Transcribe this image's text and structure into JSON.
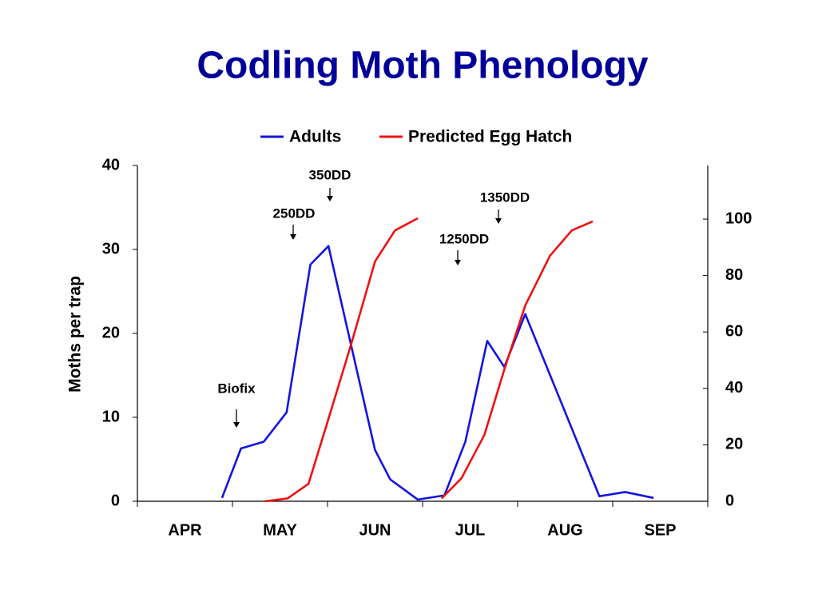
{
  "chart_data": {
    "type": "line",
    "title": "Codling Moth Phenology",
    "categories": [
      "APR",
      "MAY",
      "JUN",
      "JUL",
      "AUG",
      "SEP"
    ],
    "xlim": [
      0,
      6
    ],
    "ylabel": "Moths per trap",
    "ylim": [
      0,
      40
    ],
    "yticks": [
      0,
      10,
      20,
      30,
      40
    ],
    "y2lim": [
      0,
      119
    ],
    "y2ticks": [
      0,
      20,
      40,
      60,
      80,
      100
    ],
    "legend": "top",
    "series": [
      {
        "name": "Adults",
        "color": "#1414e0",
        "x": [
          0.89,
          1.09,
          1.33,
          1.57,
          1.82,
          2.01,
          2.5,
          2.66,
          2.95,
          3.23,
          3.45,
          3.68,
          3.86,
          4.08,
          4.86,
          5.13,
          5.43
        ],
        "values": [
          0.4,
          6.3,
          7.1,
          10.6,
          28.2,
          30.4,
          6.1,
          2.6,
          0.2,
          0.7,
          7.1,
          19.1,
          16.0,
          22.3,
          0.6,
          1.1,
          0.4
        ]
      },
      {
        "name": "Predicted Egg Hatch",
        "color": "#ee1111",
        "axis": "y2",
        "x": [
          1.34,
          1.58,
          1.8,
          2.02,
          2.25,
          2.5,
          2.71,
          2.95,
          null,
          3.2,
          3.41,
          3.65,
          3.86,
          4.08,
          4.34,
          4.57,
          4.79
        ],
        "values": [
          0,
          1,
          6.2,
          30.3,
          55.8,
          85,
          96,
          100.3,
          null,
          1,
          8.2,
          23.5,
          46.7,
          69.4,
          87,
          96,
          99.2
        ]
      }
    ],
    "annotations": [
      "Biofix",
      "250DD",
      "350DD",
      "1250DD",
      "1350DD"
    ]
  }
}
